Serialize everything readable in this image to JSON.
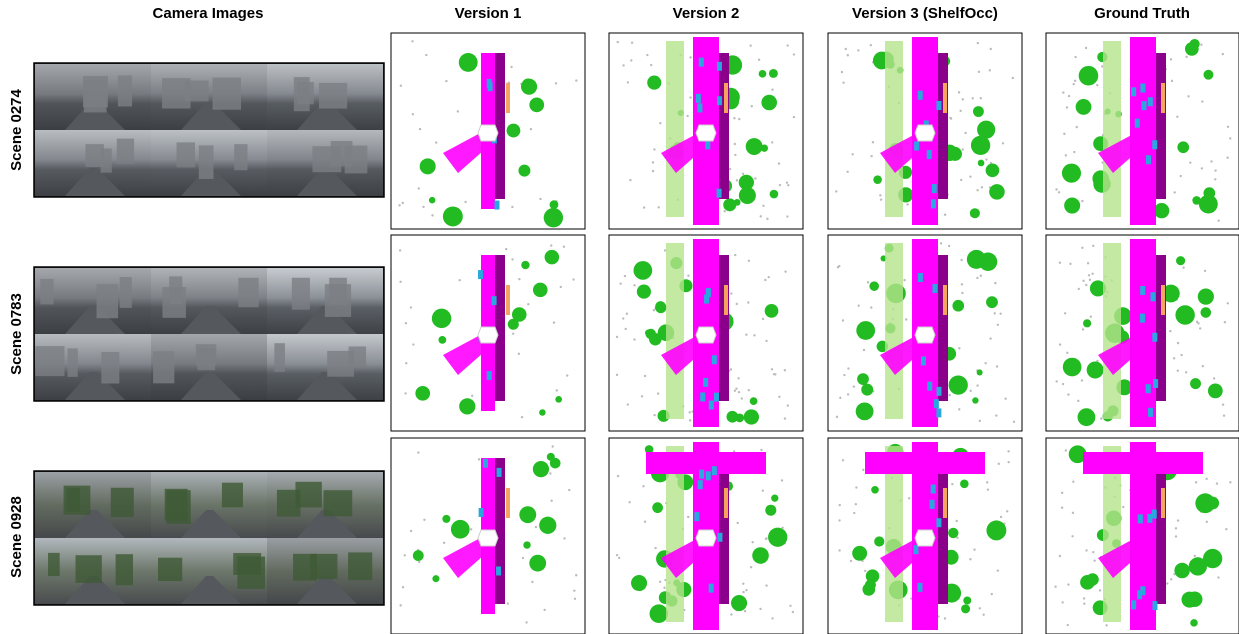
{
  "headers": [
    "Camera Images",
    "Version 1",
    "Version 2",
    "Version 3 (ShelfOcc)",
    "Ground Truth"
  ],
  "rows": [
    {
      "label": "Scene 0274"
    },
    {
      "label": "Scene 0783"
    },
    {
      "label": "Scene 0928"
    }
  ]
}
